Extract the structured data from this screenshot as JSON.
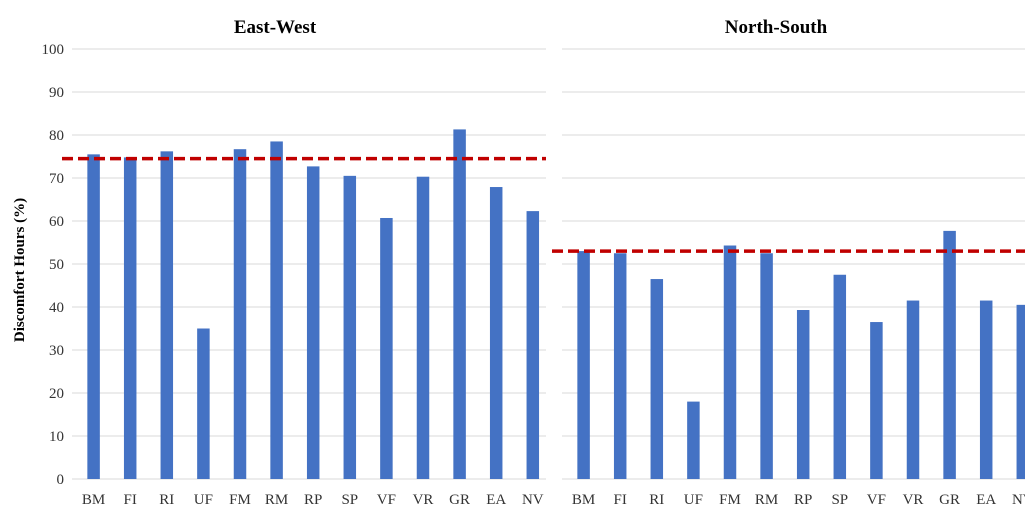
{
  "chart_data": [
    {
      "type": "bar",
      "title": "East-West",
      "ylabel": "Discomfort Hours (%)",
      "ylim": [
        0,
        100
      ],
      "yticks": [
        0,
        10,
        20,
        30,
        40,
        50,
        60,
        70,
        80,
        90,
        100
      ],
      "grid": true,
      "bar_color": "#4472c4",
      "reference_line": {
        "value": 74.5,
        "color": "#c00000",
        "style": "dashed"
      },
      "categories": [
        "BM",
        "FI",
        "RI",
        "UF",
        "FM",
        "RM",
        "RP",
        "SP",
        "VF",
        "VR",
        "GR",
        "EA",
        "NV"
      ],
      "values": [
        75.5,
        74.8,
        76.2,
        35.0,
        76.7,
        78.5,
        72.7,
        70.5,
        60.7,
        70.3,
        81.3,
        67.9,
        62.3
      ]
    },
    {
      "type": "bar",
      "title": "North-South",
      "ylim": [
        0,
        100
      ],
      "grid": true,
      "bar_color": "#4472c4",
      "reference_line": {
        "value": 53.0,
        "color": "#c00000",
        "style": "dashed"
      },
      "categories": [
        "BM",
        "FI",
        "RI",
        "UF",
        "FM",
        "RM",
        "RP",
        "SP",
        "VF",
        "VR",
        "GR",
        "EA",
        "NV"
      ],
      "values": [
        53.0,
        52.5,
        46.5,
        18.0,
        54.3,
        52.5,
        39.3,
        47.5,
        36.5,
        41.5,
        57.7,
        41.5,
        40.5
      ]
    }
  ]
}
